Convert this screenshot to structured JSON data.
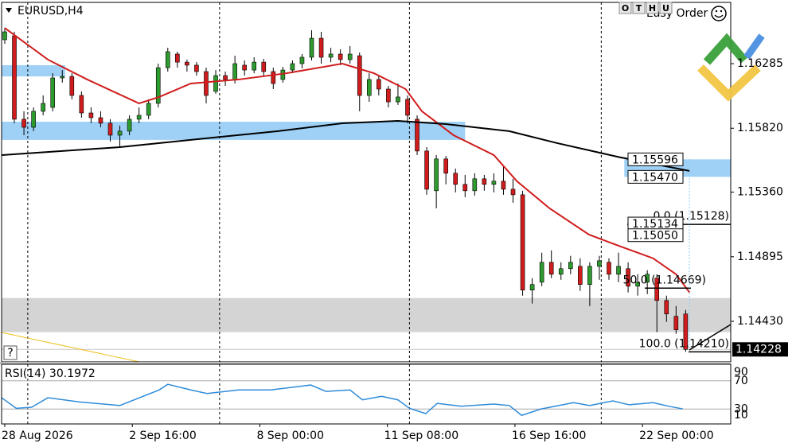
{
  "chart_data": [
    {
      "type": "candlestick",
      "title": "EURUSD,H4",
      "xlim": [
        -0.33,
        75.7
      ],
      "ylim": [
        1.14138,
        1.16726
      ],
      "yticks": [
        1.16285,
        {
          "value": 1.1582,
          "label": "1.15820"
        },
        {
          "value": 1.1536,
          "label": "1.15360"
        },
        1.14895,
        {
          "value": 1.1443,
          "label": "1.14430"
        }
      ],
      "xticks": [
        {
          "value": 0,
          "label": "28 Aug 2026"
        },
        {
          "value": 13.3,
          "label": "2 Sep 16:00"
        },
        {
          "value": 26.6,
          "label": "8 Sep 00:00"
        },
        {
          "value": 39.9,
          "label": "11 Sep 08:00"
        },
        {
          "value": 53.2,
          "label": "16 Sep 16:00"
        },
        {
          "value": 66.5,
          "label": "22 Sep 00:00"
        }
      ],
      "separators": [
        2.4,
        22.4,
        42.2,
        62.2
      ],
      "up_color": "#2e9b2e",
      "down_color": "#d01c1c",
      "open": [
        1.16457,
        1.16485,
        1.15885,
        1.15827,
        1.15942,
        1.1597,
        1.16182,
        1.16193,
        1.16056,
        1.1593,
        1.15896,
        1.15856,
        1.1577,
        1.15799,
        1.15885,
        1.15913,
        1.15999,
        1.16256,
        1.16354,
        1.16296,
        1.16274,
        1.16228,
        1.16085,
        1.16199,
        1.16171,
        1.16274,
        1.16239,
        1.16296,
        1.16228,
        1.16171,
        1.16239,
        1.16285,
        1.16331,
        1.16468,
        1.16331,
        1.16354,
        1.16314,
        1.16342,
        1.16056,
        1.16171,
        1.16102,
        1.1601,
        1.16028,
        1.15885,
        1.15656,
        1.1537,
        1.15599,
        1.15496,
        1.15416,
        1.1537,
        1.15456,
        1.15416,
        1.15439,
        1.15381,
        1.15341,
        1.14655,
        1.14712,
        1.14855,
        1.14769,
        1.14809,
        1.14826,
        1.14695,
        1.14826,
        1.14855,
        1.14769,
        1.14809,
        1.14683,
        1.14712,
        1.14741,
        1.1458,
        1.14466,
        1.14483
      ],
      "high": [
        1.16542,
        1.16514,
        1.15942,
        1.1597,
        1.16056,
        1.16216,
        1.16239,
        1.16216,
        1.16085,
        1.1597,
        1.15942,
        1.15885,
        1.15839,
        1.15913,
        1.1597,
        1.16028,
        1.16285,
        1.16399,
        1.16371,
        1.16314,
        1.16296,
        1.16256,
        1.16239,
        1.16228,
        1.16342,
        1.16308,
        1.16331,
        1.16319,
        1.16256,
        1.16262,
        1.16308,
        1.16354,
        1.16525,
        1.16514,
        1.16399,
        1.16388,
        1.16411,
        1.16365,
        1.16216,
        1.16199,
        1.16125,
        1.16142,
        1.16056,
        1.15913,
        1.15684,
        1.15627,
        1.15621,
        1.1553,
        1.15484,
        1.15496,
        1.15484,
        1.15496,
        1.15553,
        1.15456,
        1.1537,
        1.14741,
        1.14924,
        1.14941,
        1.14855,
        1.14901,
        1.14884,
        1.14855,
        1.14901,
        1.14884,
        1.14924,
        1.14855,
        1.14769,
        1.14798,
        1.14769,
        1.14615,
        1.1454,
        1.14512
      ],
      "low": [
        1.16428,
        1.15856,
        1.1577,
        1.15799,
        1.15913,
        1.15942,
        1.16148,
        1.16028,
        1.15896,
        1.15856,
        1.15827,
        1.15724,
        1.15684,
        1.1577,
        1.15856,
        1.15885,
        1.1597,
        1.16228,
        1.16256,
        1.16228,
        1.16199,
        1.15999,
        1.16068,
        1.16125,
        1.16142,
        1.16199,
        1.16216,
        1.16193,
        1.16102,
        1.16148,
        1.16216,
        1.16251,
        1.16308,
        1.16285,
        1.16296,
        1.16274,
        1.16285,
        1.15942,
        1.1601,
        1.16056,
        1.1597,
        1.15988,
        1.15856,
        1.15627,
        1.15341,
        1.15244,
        1.15416,
        1.15358,
        1.15324,
        1.15335,
        1.1537,
        1.15358,
        1.15341,
        1.15284,
        1.14615,
        1.14558,
        1.14683,
        1.14741,
        1.14729,
        1.14769,
        1.14649,
        1.1454,
        1.14729,
        1.14729,
        1.14712,
        1.14638,
        1.14615,
        1.14626,
        1.14352,
        1.14426,
        1.1434,
        1.1421
      ],
      "close": [
        1.16514,
        1.15885,
        1.15827,
        1.15942,
        1.15999,
        1.16182,
        1.16193,
        1.16056,
        1.1593,
        1.15896,
        1.15856,
        1.1577,
        1.15799,
        1.15885,
        1.15913,
        1.15999,
        1.16256,
        1.16371,
        1.16296,
        1.16274,
        1.16228,
        1.16056,
        1.16199,
        1.16171,
        1.16285,
        1.16239,
        1.16296,
        1.16228,
        1.16142,
        1.16239,
        1.16285,
        1.16331,
        1.16468,
        1.16331,
        1.16354,
        1.16314,
        1.16354,
        1.16056,
        1.16171,
        1.16102,
        1.1601,
        1.16045,
        1.15913,
        1.15656,
        1.15381,
        1.15599,
        1.15496,
        1.15416,
        1.1537,
        1.15456,
        1.15416,
        1.15439,
        1.15381,
        1.15341,
        1.14655,
        1.14695,
        1.14855,
        1.14769,
        1.14809,
        1.14855,
        1.14695,
        1.14826,
        1.14866,
        1.14769,
        1.14826,
        1.14683,
        1.14712,
        1.14769,
        1.1458,
        1.14483,
        1.14369,
        1.14228
      ],
      "series": [
        {
          "color": "#d01c1c",
          "x": [
            0,
            4.5,
            8.6,
            14,
            16.1,
            19.4,
            24.4,
            29.4,
            35.2,
            38.5,
            41.8,
            43.5,
            46.8,
            51,
            53.4,
            56.8,
            60.9,
            64.2,
            67.6,
            70,
            71.4
          ],
          "values": [
            1.16542,
            1.16314,
            1.16171,
            1.15999,
            1.16045,
            1.16142,
            1.16171,
            1.16216,
            1.16285,
            1.16216,
            1.16102,
            1.15942,
            1.1577,
            1.15627,
            1.15439,
            1.15244,
            1.15055,
            1.14969,
            1.14884,
            1.14769,
            1.14638
          ]
        },
        {
          "color": "#000000",
          "x": [
            -0.33,
            12,
            20.2,
            28.5,
            35.2,
            41,
            46,
            52.6,
            57.6,
            64.2,
            71.4
          ],
          "values": [
            1.15627,
            1.15684,
            1.15742,
            1.15799,
            1.15856,
            1.15873,
            1.1585,
            1.15799,
            1.15713,
            1.1561,
            1.15513
          ]
        }
      ],
      "zones": [
        {
          "x": [
            -0.33,
            6.3
          ],
          "y": [
            1.16274,
            1.16193
          ],
          "color": "#9fd1f7"
        },
        {
          "x": [
            -0.33,
            48
          ],
          "y": [
            1.15867,
            1.15736
          ],
          "color": "#9fd1f7"
        },
        {
          "x": [
            64.6,
            75.7
          ],
          "y": [
            1.15596,
            1.1547
          ],
          "color": "#9fd1f7"
        },
        {
          "x": [
            -0.33,
            75.7
          ],
          "y": [
            1.14598,
            1.14352
          ],
          "color": "#d4d4d4"
        }
      ],
      "price_labels": [
        1.15596,
        {
          "value": 1.1547,
          "label": "1.15470"
        },
        1.15134,
        {
          "value": 1.1505,
          "label": "1.15050"
        }
      ],
      "levels": [
        {
          "value": 1.15128,
          "label": "0.0 (1.15128)"
        },
        {
          "value": 1.14669,
          "label": "50.0 (1.14669)"
        },
        {
          "value": 1.1421,
          "label": "100.0 (1.14210)"
        }
      ],
      "last_price": 1.14228
    },
    {
      "type": "line",
      "title": "RSI(14) 30.1972",
      "ylim": [
        10,
        90
      ],
      "yticks": [
        10,
        30,
        70,
        90
      ],
      "color": "#2f8bd8",
      "x": [
        -0.33,
        1.2,
        2.8,
        4.5,
        7.8,
        12,
        16.1,
        17,
        19.4,
        21.1,
        24.4,
        27.7,
        31.9,
        33.5,
        36,
        37.3,
        39.3,
        41,
        42.2,
        43.9,
        45.1,
        47.6,
        51,
        52.6,
        53.9,
        55.9,
        59.3,
        61,
        63.4,
        65.1,
        67.6,
        69.2,
        70.7
      ],
      "values": [
        46,
        31,
        32.5,
        46,
        40,
        35,
        57,
        65,
        57,
        52,
        57,
        57,
        64,
        55,
        57,
        43,
        48,
        43,
        31,
        23.5,
        38,
        34,
        37,
        35,
        21,
        30,
        39,
        35,
        41.5,
        36,
        39,
        34,
        30.1972
      ]
    }
  ],
  "ui": {
    "buttons": [
      "O",
      "T",
      "H",
      "U"
    ],
    "easy_order": "Easy Order",
    "help": "?"
  }
}
